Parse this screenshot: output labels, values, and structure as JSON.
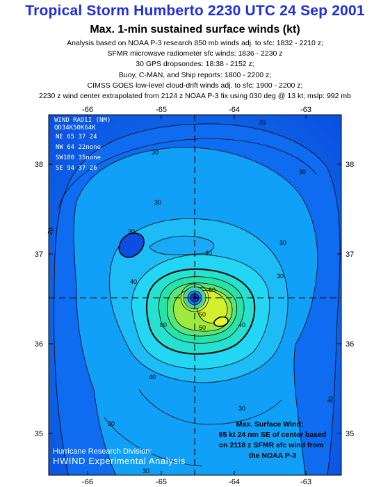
{
  "header": {
    "title": "Tropical Storm Humberto 2230 UTC 24 Sep 2001",
    "subtitle": "Max. 1-min sustained surface winds (kt)",
    "notes": [
      "Analysis based on NOAA P-3 research 850 mb winds adj. to sfc: 1832 - 2210 z;",
      "SFMR microwave radiometer sfc winds: 1836 - 2230 z",
      "30 GPS dropsondes: 18:38 - 2152 z;",
      "Buoy, C-MAN, and Ship reports: 1800 - 2200 z;",
      "CIMSS GOES low-level cloud-drift winds adj. to sfc: 1900 - 2200 z;",
      "2230 z wind center extrapolated from 2124 z NOAA P-3 fix using 030 deg @ 13 kt; mslp: 992 mb"
    ]
  },
  "axes": {
    "longitude_labels": [
      "-66",
      "-65",
      "-64",
      "-63"
    ],
    "latitude_labels": [
      "38",
      "37",
      "36",
      "35"
    ]
  },
  "wind_radii_table": {
    "title": "WIND RADII (NM)",
    "header": "QD34K50K64K",
    "rows": [
      "NE 65 37 24",
      "NW 64 22none",
      "SW100 35none",
      "SE 94 37 26"
    ]
  },
  "contour_labels": [
    "20",
    "30",
    "20",
    "30",
    "30",
    "30",
    "40",
    "40",
    "40",
    "50",
    "60",
    "60",
    "50",
    "40",
    "30",
    "30",
    "30",
    "30",
    "30",
    "30"
  ],
  "max_wind_note": [
    "Max. Surface Wind:",
    "65 kt 24 nm SE of center based",
    "on 2118 z SFMR sfc wind from",
    "the NOAA P-3"
  ],
  "credit": {
    "org": "Hurricane Research Division:",
    "product": "HWIND Experimental Analysis"
  },
  "colors": {
    "title": "#1e2ee6",
    "wind_20": "#0f6cf0",
    "wind_30": "#10a0f8",
    "wind_40": "#22d6f4",
    "wind_50": "#28e2b8",
    "wind_60": "#7ce654",
    "wind_64": "#d2ef30",
    "center": "#1834c8"
  }
}
